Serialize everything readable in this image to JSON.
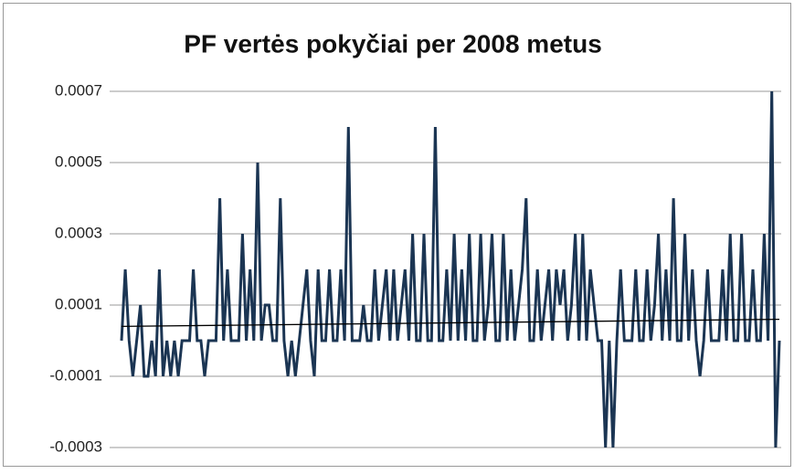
{
  "chart_data": {
    "type": "line",
    "title": "PF vertės pokyčiai per 2008 metus",
    "series": [
      {
        "color": "#1b3553",
        "values": [
          0,
          0.0002,
          0,
          -0.0001,
          0,
          0.0001,
          -0.0001,
          -0.0001,
          0,
          -0.0001,
          0.0002,
          -0.0001,
          0,
          -0.0001,
          0,
          -0.0001,
          0,
          0,
          0,
          0.0002,
          0,
          0,
          -0.0001,
          0,
          0,
          0,
          0.0004,
          0,
          0.0002,
          0,
          0,
          0,
          0.0003,
          0,
          0.0002,
          0,
          0.0005,
          0,
          0.0001,
          0.0001,
          0,
          0,
          0.0004,
          0,
          -0.0001,
          0,
          -0.0001,
          0,
          0.0001,
          0.0002,
          0,
          -0.0001,
          0.0002,
          0,
          0,
          0.0002,
          0,
          0,
          0.0002,
          0,
          0.0006,
          0,
          0,
          0,
          0.0001,
          0,
          0,
          0.0002,
          0,
          0.0001,
          0.0002,
          0,
          0.0002,
          0,
          0.0001,
          0.0002,
          0,
          0.0003,
          0,
          0,
          0.0003,
          0,
          0,
          0.0006,
          0,
          0,
          0.0002,
          0,
          0.0003,
          0,
          0.0002,
          0,
          0.0003,
          0,
          0,
          0.0003,
          0,
          0.0001,
          0.0003,
          0,
          0,
          0.0003,
          0,
          0.0002,
          0,
          0.0001,
          0.0002,
          0.0004,
          0,
          0,
          0.0002,
          0,
          0.0001,
          0.0002,
          0,
          0.0002,
          0.0001,
          0.0002,
          0,
          0.0001,
          0.0003,
          0,
          0.0003,
          0,
          0.0002,
          0.0001,
          0,
          0,
          -0.0003,
          0,
          -0.0003,
          0,
          0.0002,
          0,
          0,
          0,
          0.0002,
          0,
          0,
          0.0002,
          0,
          0.0001,
          0.0003,
          0,
          0.0002,
          0,
          0.0004,
          0,
          0,
          0.0003,
          0,
          0.0002,
          0,
          -0.0001,
          0,
          0.0002,
          0,
          0,
          0,
          0.0002,
          0,
          0.0003,
          0,
          0,
          0.0003,
          0,
          0,
          0.0002,
          0,
          0,
          0.0003,
          0,
          0.0007,
          -0.0003,
          0
        ]
      }
    ],
    "trendline": {
      "color": "#000000",
      "values": [
        4e-05,
        6e-05
      ]
    },
    "ylim": [
      -0.0003,
      0.0007
    ],
    "yticks": [
      -0.0003,
      -0.0001,
      0.0001,
      0.0003,
      0.0005,
      0.0007
    ],
    "grid": true
  }
}
